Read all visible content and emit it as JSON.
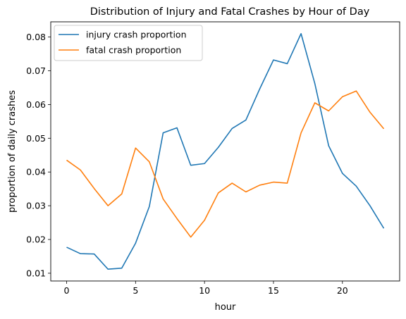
{
  "chart_data": {
    "type": "line",
    "title": "Distribution of Injury and Fatal Crashes by Hour of Day",
    "xlabel": "hour",
    "ylabel": "proportion of daily crashes",
    "xlim": [
      -1.15,
      24.15
    ],
    "ylim": [
      0.0077,
      0.0845
    ],
    "xticks": [
      0,
      5,
      10,
      15,
      20
    ],
    "xtick_labels": [
      "0",
      "5",
      "10",
      "15",
      "20"
    ],
    "yticks": [
      0.01,
      0.02,
      0.03,
      0.04,
      0.05,
      0.06,
      0.07,
      0.08
    ],
    "ytick_labels": [
      "0.01",
      "0.02",
      "0.03",
      "0.04",
      "0.05",
      "0.06",
      "0.07",
      "0.08"
    ],
    "grid": false,
    "legend_position": "top-left",
    "x": [
      0,
      1,
      2,
      3,
      4,
      5,
      6,
      7,
      8,
      9,
      10,
      11,
      12,
      13,
      14,
      15,
      16,
      17,
      18,
      19,
      20,
      21,
      22,
      23
    ],
    "series": [
      {
        "name": "injury crash proportion",
        "color": "#1f77b4",
        "values": [
          0.0177,
          0.0158,
          0.0157,
          0.0112,
          0.0115,
          0.0189,
          0.0298,
          0.0516,
          0.0531,
          0.042,
          0.0425,
          0.0473,
          0.0529,
          0.0554,
          0.0646,
          0.0732,
          0.0721,
          0.081,
          0.0662,
          0.0478,
          0.0396,
          0.0358,
          0.03,
          0.0233
        ]
      },
      {
        "name": "fatal crash proportion",
        "color": "#ff7f0e",
        "values": [
          0.0435,
          0.0406,
          0.0351,
          0.03,
          0.0335,
          0.0471,
          0.043,
          0.032,
          0.0262,
          0.0207,
          0.0257,
          0.0338,
          0.0367,
          0.0341,
          0.0361,
          0.037,
          0.0367,
          0.0516,
          0.0605,
          0.0581,
          0.0623,
          0.064,
          0.0577,
          0.0528
        ]
      }
    ]
  }
}
